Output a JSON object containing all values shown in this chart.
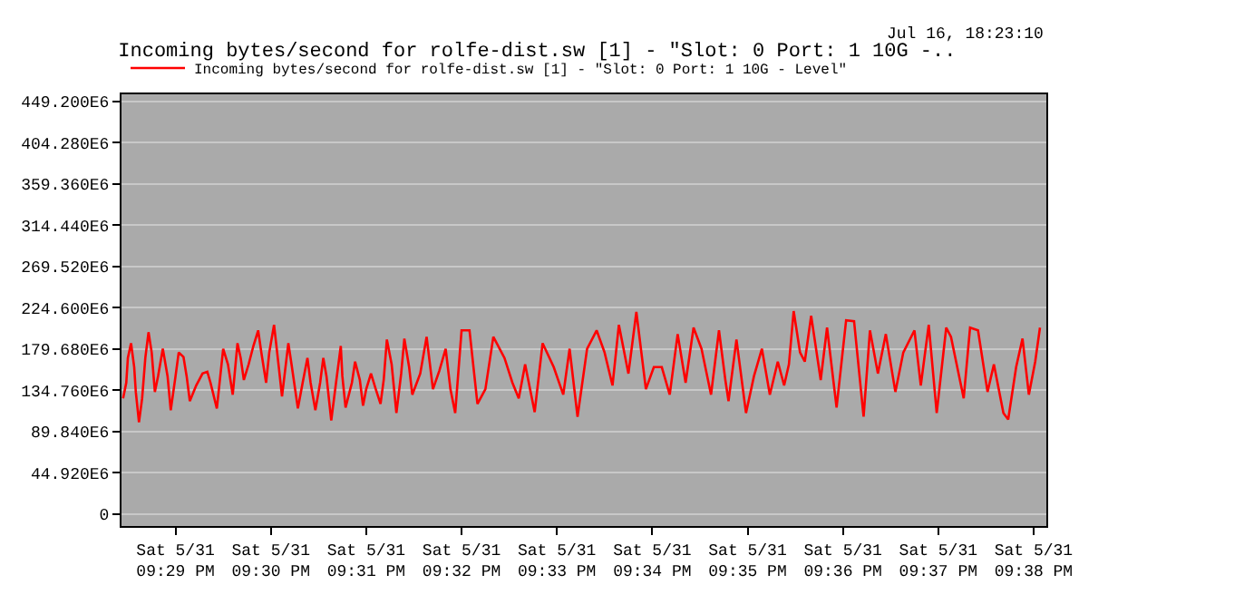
{
  "chart_data": {
    "type": "line",
    "title": "Incoming bytes/second for rolfe-dist.sw [1] - \"Slot: 0 Port: 1 10G -..",
    "annotations": [
      "Jul 16, 18:23:10"
    ],
    "legend": "top left",
    "grid": "y",
    "marker": "none",
    "line_style": "solid",
    "xlim": [
      "--05-31T21:28:26",
      "--05-31T21:38:08"
    ],
    "ylim": [
      -13000000,
      457000000
    ],
    "xticks": [
      {
        "value": "--05-31T21:29",
        "label": "Sat 5/31\n09:29 PM"
      },
      {
        "value": "--05-31T21:30",
        "label": "Sat 5/31\n09:30 PM"
      },
      {
        "value": "--05-31T21:31",
        "label": "Sat 5/31\n09:31 PM"
      },
      {
        "value": "--05-31T21:32",
        "label": "Sat 5/31\n09:32 PM"
      },
      {
        "value": "--05-31T21:33",
        "label": "Sat 5/31\n09:33 PM"
      },
      {
        "value": "--05-31T21:34",
        "label": "Sat 5/31\n09:34 PM"
      },
      {
        "value": "--05-31T21:35",
        "label": "Sat 5/31\n09:35 PM"
      },
      {
        "value": "--05-31T21:36",
        "label": "Sat 5/31\n09:36 PM"
      },
      {
        "value": "--05-31T21:37",
        "label": "Sat 5/31\n09:37 PM"
      },
      {
        "value": "--05-31T21:38",
        "label": "Sat 5/31\n09:38 PM"
      }
    ],
    "yticks": [
      {
        "value": 0,
        "label": "0"
      },
      {
        "value": 44920000,
        "label": "44.920E6"
      },
      {
        "value": 89840000,
        "label": "89.840E6"
      },
      {
        "value": 134760000,
        "label": "134.760E6"
      },
      {
        "value": 179680000,
        "label": "179.680E6"
      },
      {
        "value": 224600000,
        "label": "224.600E6"
      },
      {
        "value": 269520000,
        "label": "269.520E6"
      },
      {
        "value": 314440000,
        "label": "314.440E6"
      },
      {
        "value": 359360000,
        "label": "359.360E6"
      },
      {
        "value": 404280000,
        "label": "404.280E6"
      },
      {
        "value": 449200000,
        "label": "449.200E6"
      }
    ],
    "series": [
      {
        "name": "Incoming bytes/second for rolfe-dist.sw [1] - \"Slot: 0 Port: 1 10G - Level\"",
        "color": "#ff0000",
        "x": [
          "--05-31T21:28:27",
          "--05-31T21:28:29",
          "--05-31T21:28:30",
          "--05-31T21:28:32",
          "--05-31T21:28:34",
          "--05-31T21:28:35",
          "--05-31T21:28:37",
          "--05-31T21:28:39",
          "--05-31T21:28:41",
          "--05-31T21:28:43",
          "--05-31T21:28:45",
          "--05-31T21:28:47",
          "--05-31T21:28:49",
          "--05-31T21:28:52",
          "--05-31T21:28:55",
          "--05-31T21:28:57",
          "--05-31T21:29:00",
          "--05-31T21:29:02",
          "--05-31T21:29:05",
          "--05-31T21:29:07",
          "--05-31T21:29:09",
          "--05-31T21:29:13",
          "--05-31T21:29:17",
          "--05-31T21:29:20",
          "--05-31T21:29:22",
          "--05-31T21:29:26",
          "--05-31T21:29:30",
          "--05-31T21:29:33",
          "--05-31T21:29:36",
          "--05-31T21:29:39",
          "--05-31T21:29:41",
          "--05-31T21:29:43",
          "--05-31T21:29:46",
          "--05-31T21:29:49",
          "--05-31T21:29:52",
          "--05-31T21:29:54",
          "--05-31T21:29:57",
          "--05-31T21:29:59",
          "--05-31T21:30:02",
          "--05-31T21:30:05",
          "--05-31T21:30:07",
          "--05-31T21:30:11",
          "--05-31T21:30:13",
          "--05-31T21:30:17",
          "--05-31T21:30:20",
          "--05-31T21:30:23",
          "--05-31T21:30:25",
          "--05-31T21:30:28",
          "--05-31T21:30:31",
          "--05-31T21:30:33",
          "--05-31T21:30:35",
          "--05-31T21:30:38",
          "--05-31T21:30:41",
          "--05-31T21:30:44",
          "--05-31T21:30:45",
          "--05-31T21:30:47",
          "--05-31T21:30:51",
          "--05-31T21:30:53",
          "--05-31T21:30:56",
          "--05-31T21:30:58",
          "--05-31T21:31:00",
          "--05-31T21:31:03",
          "--05-31T21:31:06",
          "--05-31T21:31:09",
          "--05-31T21:31:11",
          "--05-31T21:31:13",
          "--05-31T21:31:16",
          "--05-31T21:31:19",
          "--05-31T21:31:22",
          "--05-31T21:31:24",
          "--05-31T21:31:27",
          "--05-31T21:31:29",
          "--05-31T21:31:34",
          "--05-31T21:31:38",
          "--05-31T21:31:42",
          "--05-31T21:31:46",
          "--05-31T21:31:50",
          "--05-31T21:31:53",
          "--05-31T21:31:56",
          "--05-31T21:32:00",
          "--05-31T21:32:05",
          "--05-31T21:32:10",
          "--05-31T21:32:15",
          "--05-31T21:32:20",
          "--05-31T21:32:27",
          "--05-31T21:32:32",
          "--05-31T21:32:36",
          "--05-31T21:32:40",
          "--05-31T21:32:46",
          "--05-31T21:32:51",
          "--05-31T21:32:58",
          "--05-31T21:33:04",
          "--05-31T21:33:08",
          "--05-31T21:33:13",
          "--05-31T21:33:19",
          "--05-31T21:33:25",
          "--05-31T21:33:30",
          "--05-31T21:33:35",
          "--05-31T21:33:39",
          "--05-31T21:33:45",
          "--05-31T21:33:50",
          "--05-31T21:33:56",
          "--05-31T21:34:01",
          "--05-31T21:34:06",
          "--05-31T21:34:11",
          "--05-31T21:34:16",
          "--05-31T21:34:21",
          "--05-31T21:34:26",
          "--05-31T21:34:31",
          "--05-31T21:34:37",
          "--05-31T21:34:42",
          "--05-31T21:34:46",
          "--05-31T21:34:48",
          "--05-31T21:34:53",
          "--05-31T21:34:59",
          "--05-31T21:35:04",
          "--05-31T21:35:09",
          "--05-31T21:35:14",
          "--05-31T21:35:19",
          "--05-31T21:35:23",
          "--05-31T21:35:26",
          "--05-31T21:35:29",
          "--05-31T21:35:33",
          "--05-31T21:35:36",
          "--05-31T21:35:40",
          "--05-31T21:35:46",
          "--05-31T21:35:50",
          "--05-31T21:35:56",
          "--05-31T21:36:02",
          "--05-31T21:36:07",
          "--05-31T21:36:13",
          "--05-31T21:36:17",
          "--05-31T21:36:22",
          "--05-31T21:36:27",
          "--05-31T21:36:33",
          "--05-31T21:36:38",
          "--05-31T21:36:45",
          "--05-31T21:36:49",
          "--05-31T21:36:54",
          "--05-31T21:36:59",
          "--05-31T21:37:05",
          "--05-31T21:37:08",
          "--05-31T21:37:16",
          "--05-31T21:37:20",
          "--05-31T21:37:25",
          "--05-31T21:37:31",
          "--05-31T21:37:35",
          "--05-31T21:37:41",
          "--05-31T21:37:44",
          "--05-31T21:37:49",
          "--05-31T21:37:53",
          "--05-31T21:37:57",
          "--05-31T21:38:01",
          "--05-31T21:38:04"
        ],
        "values": [
          126000000,
          143000000,
          170000000,
          186000000,
          160000000,
          133000000,
          100000000,
          126000000,
          170000000,
          198000000,
          176000000,
          133000000,
          150000000,
          180000000,
          150000000,
          113000000,
          150000000,
          176000000,
          171000000,
          150000000,
          123000000,
          140000000,
          153000000,
          155000000,
          143000000,
          115000000,
          180000000,
          163000000,
          130000000,
          186000000,
          170000000,
          146000000,
          163000000,
          183000000,
          200000000,
          176000000,
          143000000,
          176000000,
          206000000,
          160000000,
          128000000,
          186000000,
          163000000,
          115000000,
          143000000,
          170000000,
          143000000,
          113000000,
          143000000,
          170000000,
          150000000,
          102000000,
          143000000,
          183000000,
          150000000,
          116000000,
          143000000,
          166000000,
          146000000,
          118000000,
          136000000,
          153000000,
          136000000,
          120000000,
          146000000,
          190000000,
          163000000,
          110000000,
          153000000,
          191000000,
          160000000,
          130000000,
          153000000,
          193000000,
          136000000,
          156000000,
          180000000,
          136000000,
          110000000,
          200000000,
          200000000,
          120000000,
          136000000,
          193000000,
          170000000,
          143000000,
          126000000,
          163000000,
          111000000,
          186000000,
          160000000,
          130000000,
          180000000,
          106000000,
          180000000,
          200000000,
          176000000,
          140000000,
          206000000,
          153000000,
          220000000,
          136000000,
          160000000,
          160000000,
          130000000,
          196000000,
          143000000,
          203000000,
          180000000,
          130000000,
          200000000,
          146000000,
          123000000,
          190000000,
          110000000,
          150000000,
          180000000,
          130000000,
          166000000,
          140000000,
          163000000,
          221000000,
          176000000,
          166000000,
          216000000,
          146000000,
          203000000,
          116000000,
          211000000,
          210000000,
          106000000,
          200000000,
          153000000,
          196000000,
          133000000,
          176000000,
          200000000,
          140000000,
          206000000,
          110000000,
          203000000,
          193000000,
          126000000,
          203000000,
          200000000,
          133000000,
          163000000,
          110000000,
          103000000,
          160000000,
          191000000,
          130000000,
          166000000,
          203000000
        ]
      }
    ]
  }
}
